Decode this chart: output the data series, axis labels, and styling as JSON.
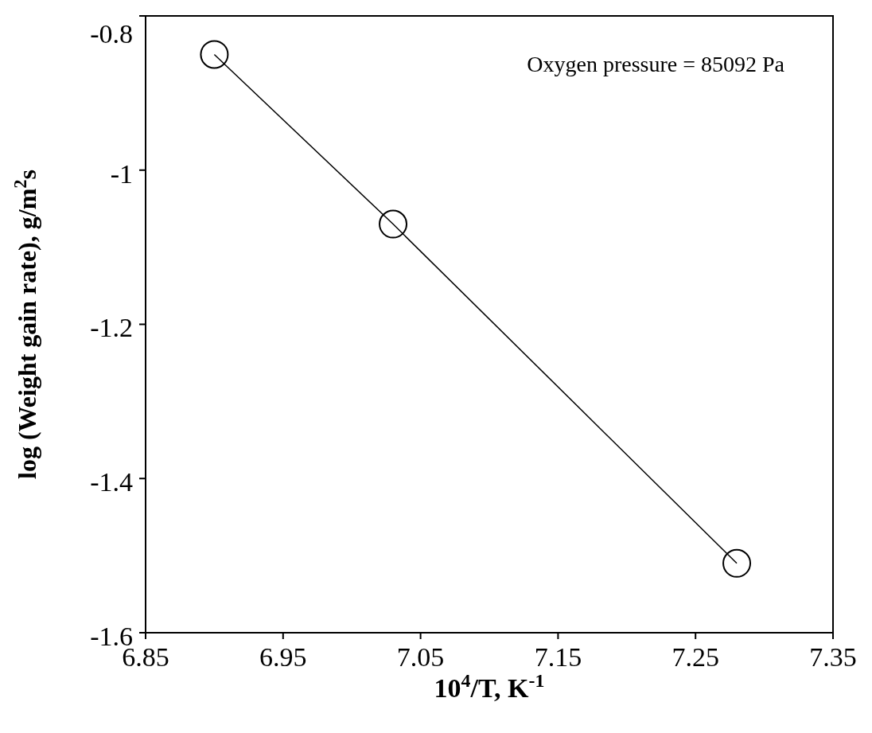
{
  "chart_data": {
    "type": "line",
    "xlabel": "10$^{4}$/T, K$^{-1}$",
    "ylabel": "log (Weight gain rate), g/m$^{2}$s",
    "x": [
      6.9,
      7.03,
      7.28
    ],
    "values": [
      -0.85,
      -1.07,
      -1.51
    ],
    "color": "#000000",
    "marker": "circle",
    "line_style": "solid",
    "grid": false,
    "xlim": [
      6.85,
      7.35
    ],
    "xticks": [
      6.85,
      6.95,
      7.05,
      7.15,
      7.25,
      7.35
    ],
    "ylim": [
      -1.6,
      -0.8
    ],
    "yticks": [
      -1.6,
      -1.4,
      -1.2,
      -1,
      -0.8
    ],
    "annotations": [
      "Oxygen pressure = 85092 Pa"
    ]
  }
}
